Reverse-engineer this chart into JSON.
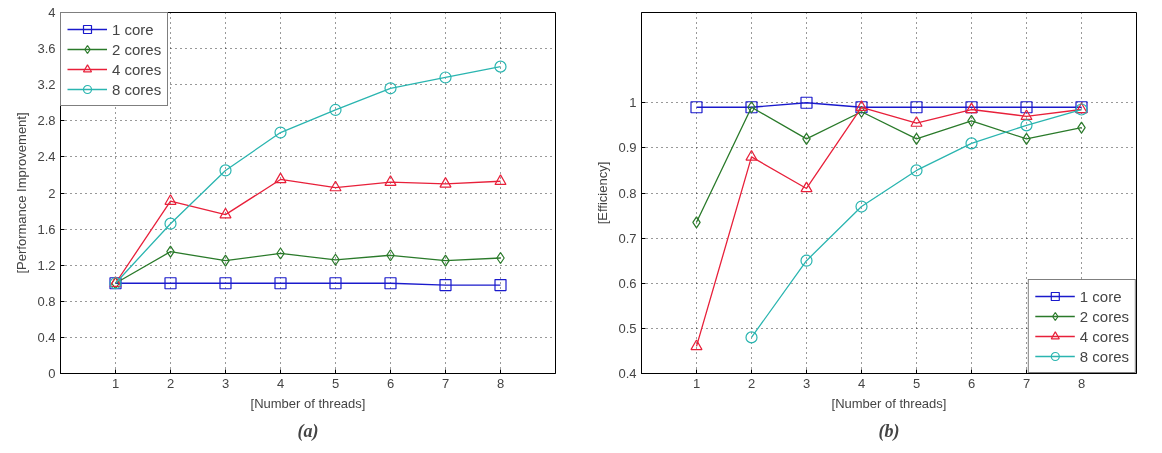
{
  "chart_data": [
    {
      "type": "line",
      "xlabel": "[Number of threads]",
      "ylabel": "[Performance Improvement]",
      "annotations": [
        "(a)"
      ],
      "x": [
        1,
        2,
        3,
        4,
        5,
        6,
        7,
        8
      ],
      "xlim": [
        0,
        9
      ],
      "xticks": [
        1,
        2,
        3,
        4,
        5,
        6,
        7,
        8
      ],
      "ylim": [
        0,
        4
      ],
      "yticks": [
        0,
        0.4,
        0.8,
        1.2,
        1.6,
        2,
        2.4,
        2.8,
        3.2,
        3.6,
        4
      ],
      "grid": true,
      "legend": "top left",
      "line_style": "solid",
      "series": [
        {
          "name": "1 core",
          "color": "#1a1acc",
          "marker": "square",
          "values": [
            1,
            1,
            1,
            1,
            1,
            1,
            0.98,
            0.98
          ]
        },
        {
          "name": "2 cores",
          "color": "#2a7a2a",
          "marker": "diamond",
          "values": [
            1,
            1.35,
            1.25,
            1.33,
            1.26,
            1.31,
            1.25,
            1.28
          ]
        },
        {
          "name": "4 cores",
          "color": "#e8203a",
          "marker": "triangle",
          "values": [
            1,
            1.91,
            1.76,
            2.15,
            2.06,
            2.12,
            2.1,
            2.13
          ]
        },
        {
          "name": "8 cores",
          "color": "#2ab5b0",
          "marker": "circle",
          "values": [
            1,
            1.66,
            2.25,
            2.67,
            2.92,
            3.16,
            3.28,
            3.4
          ]
        }
      ]
    },
    {
      "type": "line",
      "xlabel": "[Number of threads]",
      "ylabel": "[Efficiency]",
      "annotations": [
        "(b)"
      ],
      "x": [
        1,
        2,
        3,
        4,
        5,
        6,
        7,
        8
      ],
      "xlim": [
        0,
        9
      ],
      "xticks": [
        1,
        2,
        3,
        4,
        5,
        6,
        7,
        8
      ],
      "ylim": [
        0.4,
        1.2
      ],
      "yticks": [
        0.4,
        0.5,
        0.6,
        0.7,
        0.8,
        0.9,
        1
      ],
      "grid": true,
      "legend": "bottom right",
      "line_style": "solid",
      "series": [
        {
          "name": "1 core",
          "color": "#1a1acc",
          "marker": "square",
          "values": [
            0.99,
            0.99,
            1.0,
            0.99,
            0.99,
            0.99,
            0.99,
            0.99
          ]
        },
        {
          "name": "2 cores",
          "color": "#2a7a2a",
          "marker": "diamond",
          "values": [
            0.735,
            0.99,
            0.92,
            0.98,
            0.92,
            0.96,
            0.92,
            0.945
          ]
        },
        {
          "name": "4 cores",
          "color": "#e8203a",
          "marker": "triangle",
          "values": [
            0.46,
            0.88,
            0.81,
            0.99,
            0.955,
            0.985,
            0.97,
            0.985
          ]
        },
        {
          "name": "8 cores",
          "color": "#2ab5b0",
          "marker": "circle",
          "values": [
            null,
            0.48,
            0.65,
            0.77,
            0.85,
            0.91,
            0.95,
            0.985
          ]
        }
      ]
    }
  ]
}
